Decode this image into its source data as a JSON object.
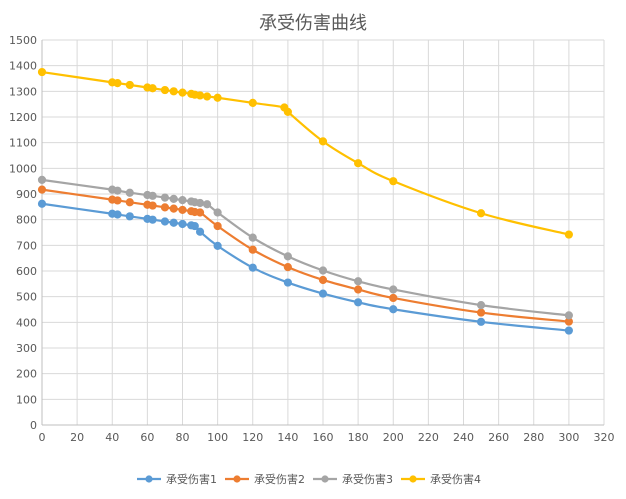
{
  "chart_data": {
    "type": "scatter",
    "title": "承受伤害曲线",
    "xlabel": "",
    "ylabel": "",
    "xlim": [
      0,
      320
    ],
    "ylim": [
      0,
      1500
    ],
    "xticks": [
      0,
      20,
      40,
      60,
      80,
      100,
      120,
      140,
      160,
      180,
      200,
      220,
      240,
      260,
      280,
      300,
      320
    ],
    "yticks": [
      0,
      100,
      200,
      300,
      400,
      500,
      600,
      700,
      800,
      900,
      1000,
      1100,
      1200,
      1300,
      1400,
      1500
    ],
    "grid": true,
    "legend_position": "bottom",
    "mode": "lines+markers",
    "series": [
      {
        "name": "承受伤害1",
        "color": "#5B9BD5",
        "x": [
          0,
          40,
          43,
          50,
          60,
          63,
          70,
          75,
          80,
          85,
          87,
          90,
          100,
          120,
          140,
          160,
          180,
          200,
          250,
          300
        ],
        "y": [
          862,
          823,
          820,
          813,
          803,
          800,
          793,
          788,
          783,
          778,
          775,
          753,
          698,
          613,
          555,
          512,
          478,
          451,
          402,
          368
        ]
      },
      {
        "name": "承受伤害2",
        "color": "#ED7D31",
        "x": [
          0,
          40,
          43,
          50,
          60,
          63,
          70,
          75,
          80,
          85,
          87,
          90,
          100,
          120,
          140,
          160,
          180,
          200,
          250,
          300
        ],
        "y": [
          917,
          878,
          875,
          868,
          858,
          855,
          848,
          843,
          838,
          833,
          830,
          828,
          775,
          683,
          615,
          565,
          528,
          495,
          438,
          403
        ]
      },
      {
        "name": "承受伤害3",
        "color": "#A5A5A5",
        "x": [
          0,
          40,
          43,
          50,
          60,
          63,
          70,
          75,
          80,
          85,
          87,
          90,
          94,
          100,
          120,
          140,
          160,
          180,
          200,
          250,
          300
        ],
        "y": [
          955,
          917,
          913,
          905,
          896,
          893,
          886,
          881,
          876,
          871,
          868,
          865,
          860,
          828,
          730,
          657,
          602,
          560,
          528,
          467,
          427
        ]
      },
      {
        "name": "承受伤害4",
        "color": "#FFC000",
        "x": [
          0,
          40,
          43,
          50,
          60,
          63,
          70,
          75,
          80,
          85,
          87,
          90,
          94,
          100,
          120,
          138,
          140,
          160,
          180,
          200,
          250,
          300
        ],
        "y": [
          1375,
          1335,
          1332,
          1325,
          1315,
          1312,
          1305,
          1300,
          1295,
          1290,
          1287,
          1284,
          1280,
          1275,
          1255,
          1237,
          1220,
          1105,
          1020,
          950,
          825,
          742
        ]
      }
    ]
  }
}
